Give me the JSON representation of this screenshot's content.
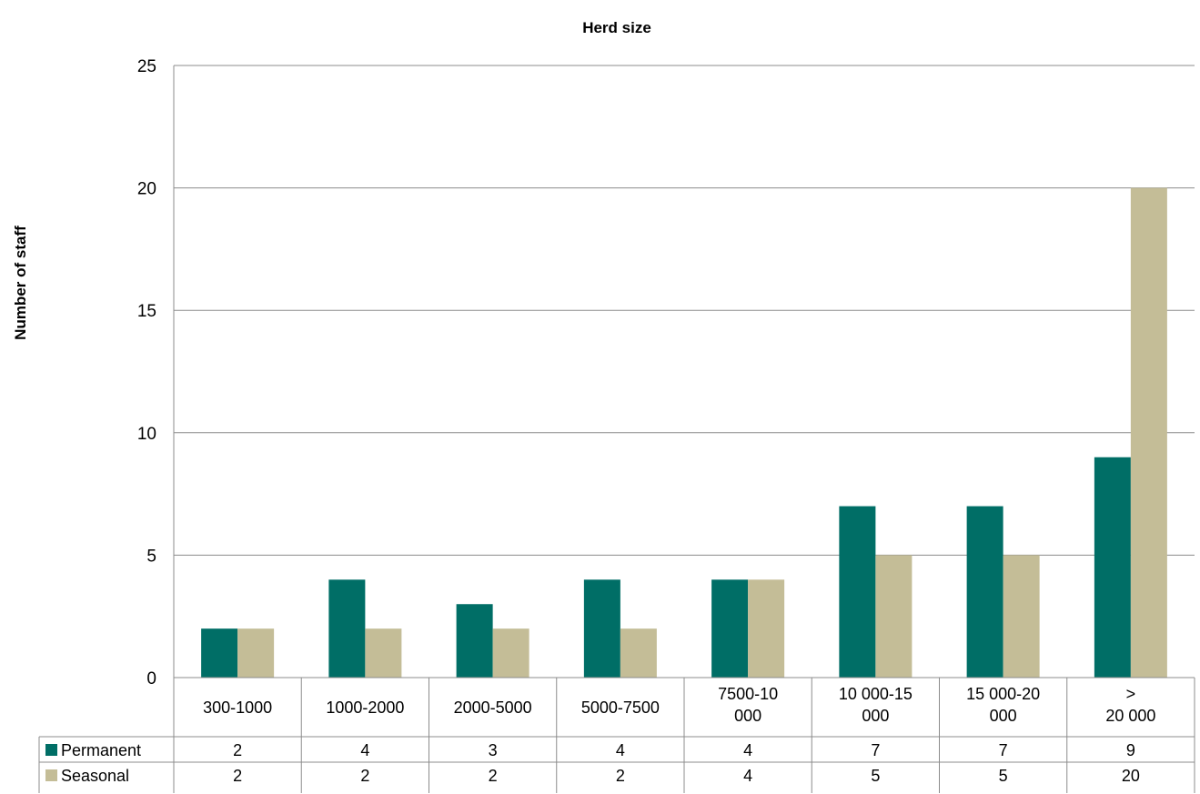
{
  "chart_data": {
    "type": "bar",
    "title": "Herd size",
    "xlabel": "",
    "ylabel": "Number of staff",
    "ylim": [
      0,
      25
    ],
    "yticks": [
      "0",
      "5",
      "10",
      "15",
      "20",
      "25"
    ],
    "grid": true,
    "legend": "data table below chart",
    "categories": [
      [
        "300-1000"
      ],
      [
        "1000-2000"
      ],
      [
        "2000-5000"
      ],
      [
        "5000-7500"
      ],
      [
        "7500-10",
        "000"
      ],
      [
        "10 000-15",
        "000"
      ],
      [
        "15 000-20",
        "000"
      ],
      [
        ">",
        "20 000"
      ]
    ],
    "series": [
      {
        "name": "Permanent",
        "color": "#006e66",
        "values": [
          2,
          4,
          3,
          4,
          4,
          7,
          7,
          9
        ]
      },
      {
        "name": "Seasonal",
        "color": "#c4bd97",
        "values": [
          2,
          2,
          2,
          2,
          4,
          5,
          5,
          20
        ]
      }
    ]
  }
}
